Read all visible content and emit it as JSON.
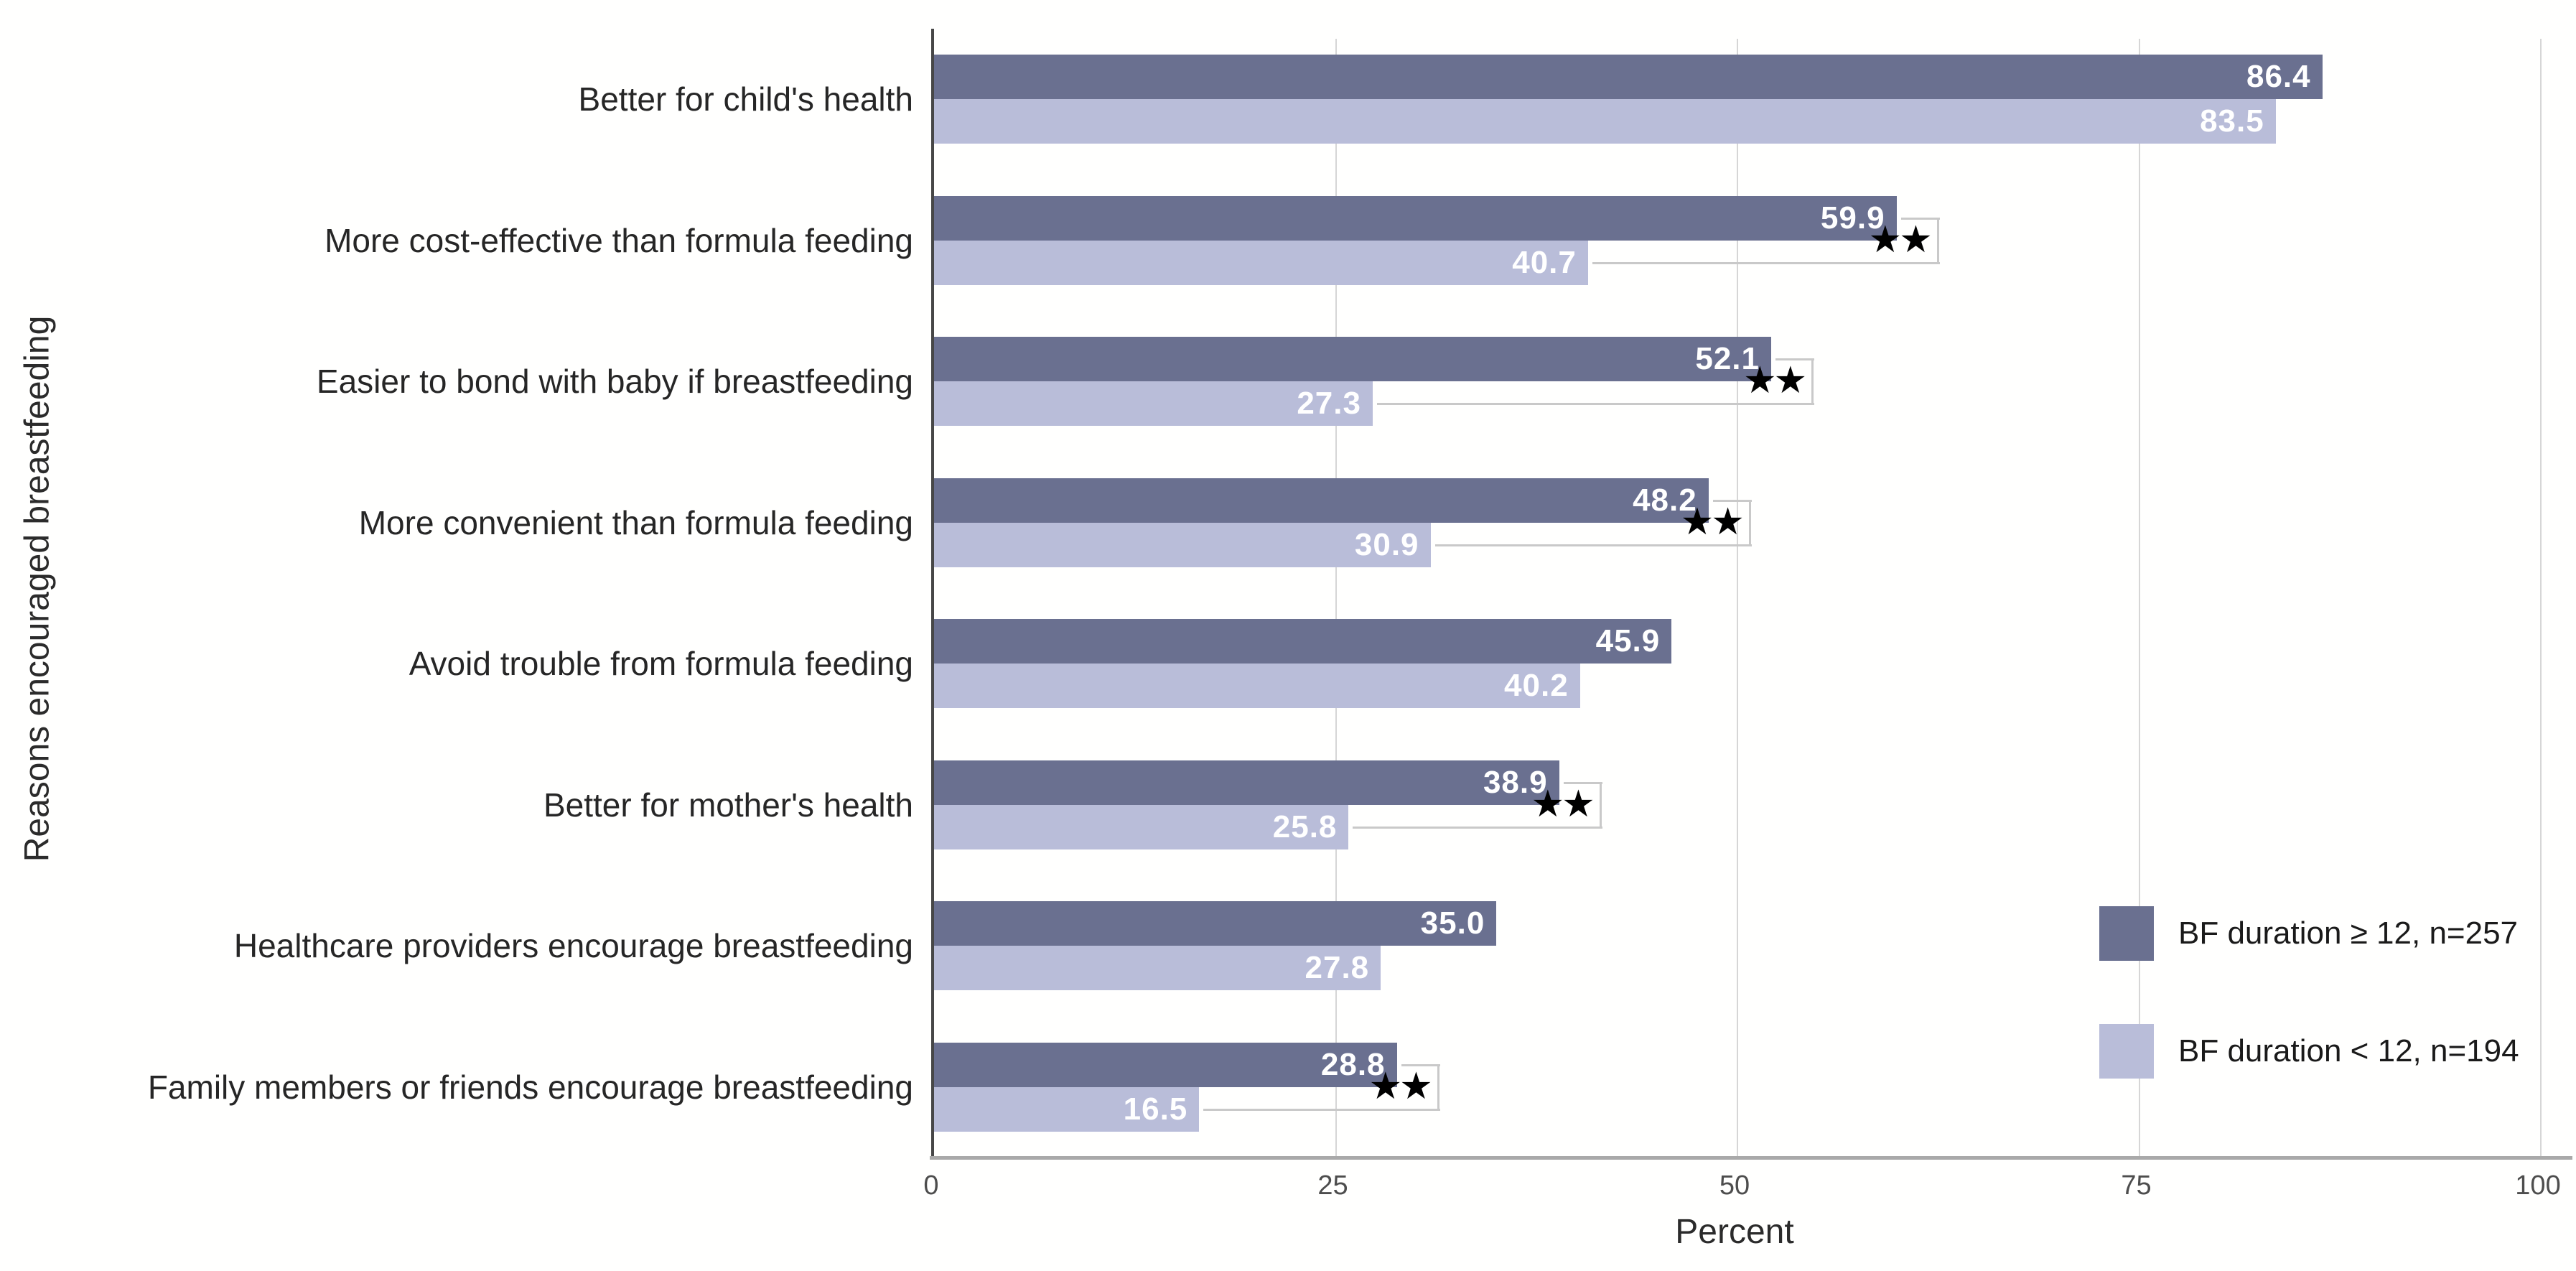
{
  "chart_data": {
    "type": "bar",
    "orientation": "horizontal",
    "xlabel": "Percent",
    "ylabel": "Reasons encouraged breastfeeding",
    "xlim": [
      0,
      100
    ],
    "x_ticks": [
      0,
      25,
      50,
      75,
      100
    ],
    "grid": "vertical-gridlines at 25/50/75/100",
    "legend_position": "right",
    "categories": [
      "Better for child's health",
      "More cost-effective than formula feeding",
      "Easier to bond with baby if breastfeeding",
      "More convenient than formula feeding",
      "Avoid trouble from formula feeding",
      "Better for mother's health",
      "Healthcare providers encourage breastfeeding",
      "Family members or friends encourage breastfeeding"
    ],
    "series": [
      {
        "name": "BF duration ≥ 12, n=257",
        "color": "#6a7090",
        "values": [
          86.4,
          59.9,
          52.1,
          48.2,
          45.9,
          38.9,
          35.0,
          28.8
        ],
        "labels": [
          "86.4",
          "59.9",
          "52.1",
          "48.2",
          "45.9",
          "38.9",
          "35.0",
          "28.8"
        ]
      },
      {
        "name": "BF duration < 12, n=194",
        "color": "#b9bdd9",
        "values": [
          83.5,
          40.7,
          27.3,
          30.9,
          40.2,
          25.8,
          27.8,
          16.5
        ],
        "labels": [
          "83.5",
          "40.7",
          "27.3",
          "30.9",
          "40.2",
          "25.8",
          "27.8",
          "16.5"
        ]
      }
    ],
    "significance": {
      "marker": "★★",
      "rows": [
        1,
        2,
        3,
        5,
        7
      ]
    }
  }
}
